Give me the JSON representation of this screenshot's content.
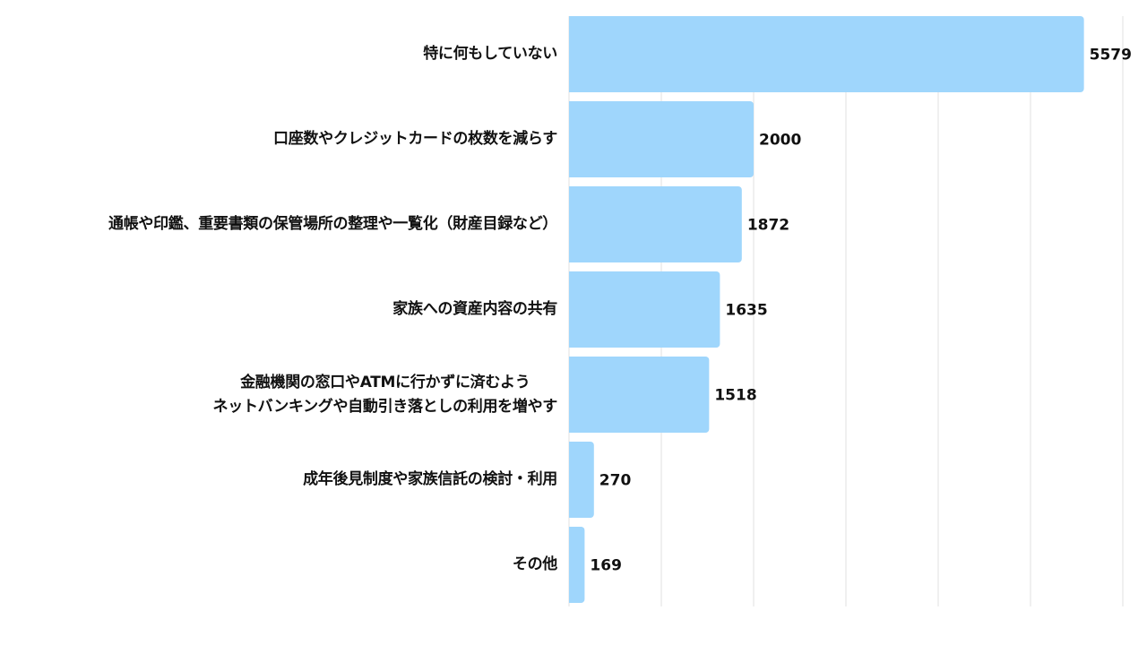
{
  "chart_data": {
    "type": "bar",
    "orientation": "horizontal",
    "categories": [
      "特に何もしていない",
      "口座数やクレジットカードの枚数を減らす",
      "通帳や印鑑、重要書類の保管場所の整理や一覧化（財産目録など）",
      "家族への資産内容の共有",
      "金融機関の窓口やATMに行かずに済むよう\nネットバンキングや自動引き落としの利用を増やす",
      "成年後見制度や家族信託の検討・利用",
      "その他"
    ],
    "values": [
      5579,
      2000,
      1872,
      1635,
      1518,
      270,
      169
    ],
    "xlim": [
      0,
      6000
    ],
    "grid": true,
    "grid_step": 1000,
    "data_labels": [
      "5579",
      "2000",
      "1872",
      "1635",
      "1518",
      "270",
      "169"
    ],
    "colors": {
      "bar": "#9fd6fc",
      "grid": "#e2e2e2",
      "text": "#111111"
    }
  }
}
